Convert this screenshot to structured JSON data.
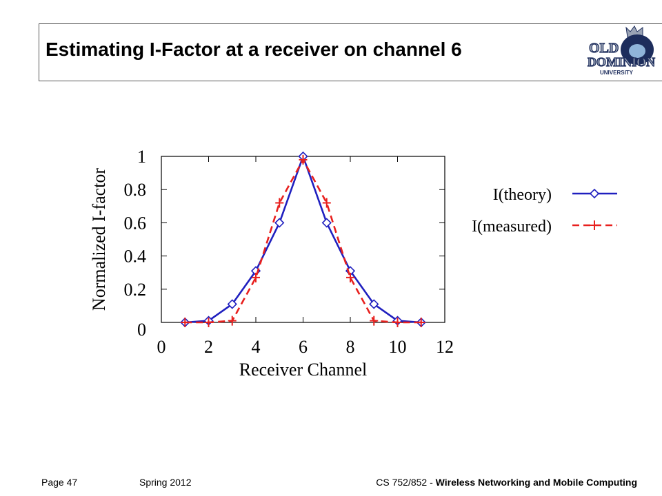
{
  "slide": {
    "title": "Estimating I-Factor at a receiver on channel 6"
  },
  "logo": {
    "name": "old-dominion-university-logo",
    "text_line1": "OLD",
    "text_line2": "DOMINION",
    "text_line3": "UNIVERSITY",
    "colors": {
      "navy": "#1d2d5c",
      "silver": "#9aa3b5",
      "light_blue": "#8fb4d9"
    }
  },
  "footer": {
    "page": "Page 47",
    "term": "Spring 2012",
    "course_code": "CS 752/852 - ",
    "course_title": "Wireless Networking and Mobile Computing"
  },
  "chart_data": {
    "type": "line",
    "title": "",
    "xlabel": "Receiver Channel",
    "ylabel": "Normalized I-factor",
    "xlim": [
      0,
      12
    ],
    "ylim": [
      0,
      1
    ],
    "xticks": [
      "0",
      "2",
      "4",
      "6",
      "8",
      "10",
      "12"
    ],
    "yticks": [
      "0",
      "0.2",
      "0.4",
      "0.6",
      "0.8",
      "1"
    ],
    "x": [
      1,
      2,
      3,
      4,
      5,
      6,
      7,
      8,
      9,
      10,
      11
    ],
    "series": [
      {
        "name": "I(theory)",
        "values": [
          0,
          0.01,
          0.11,
          0.31,
          0.6,
          1.0,
          0.6,
          0.31,
          0.11,
          0.01,
          0
        ],
        "color": "#1f1fbf",
        "line": "solid",
        "marker": "diamond"
      },
      {
        "name": "I(measured)",
        "values": [
          0,
          0,
          0.01,
          0.27,
          0.72,
          0.98,
          0.72,
          0.27,
          0.01,
          0,
          0
        ],
        "color": "#e8201e",
        "line": "dashed",
        "marker": "plus"
      }
    ],
    "grid": false,
    "legend_position": "right"
  }
}
